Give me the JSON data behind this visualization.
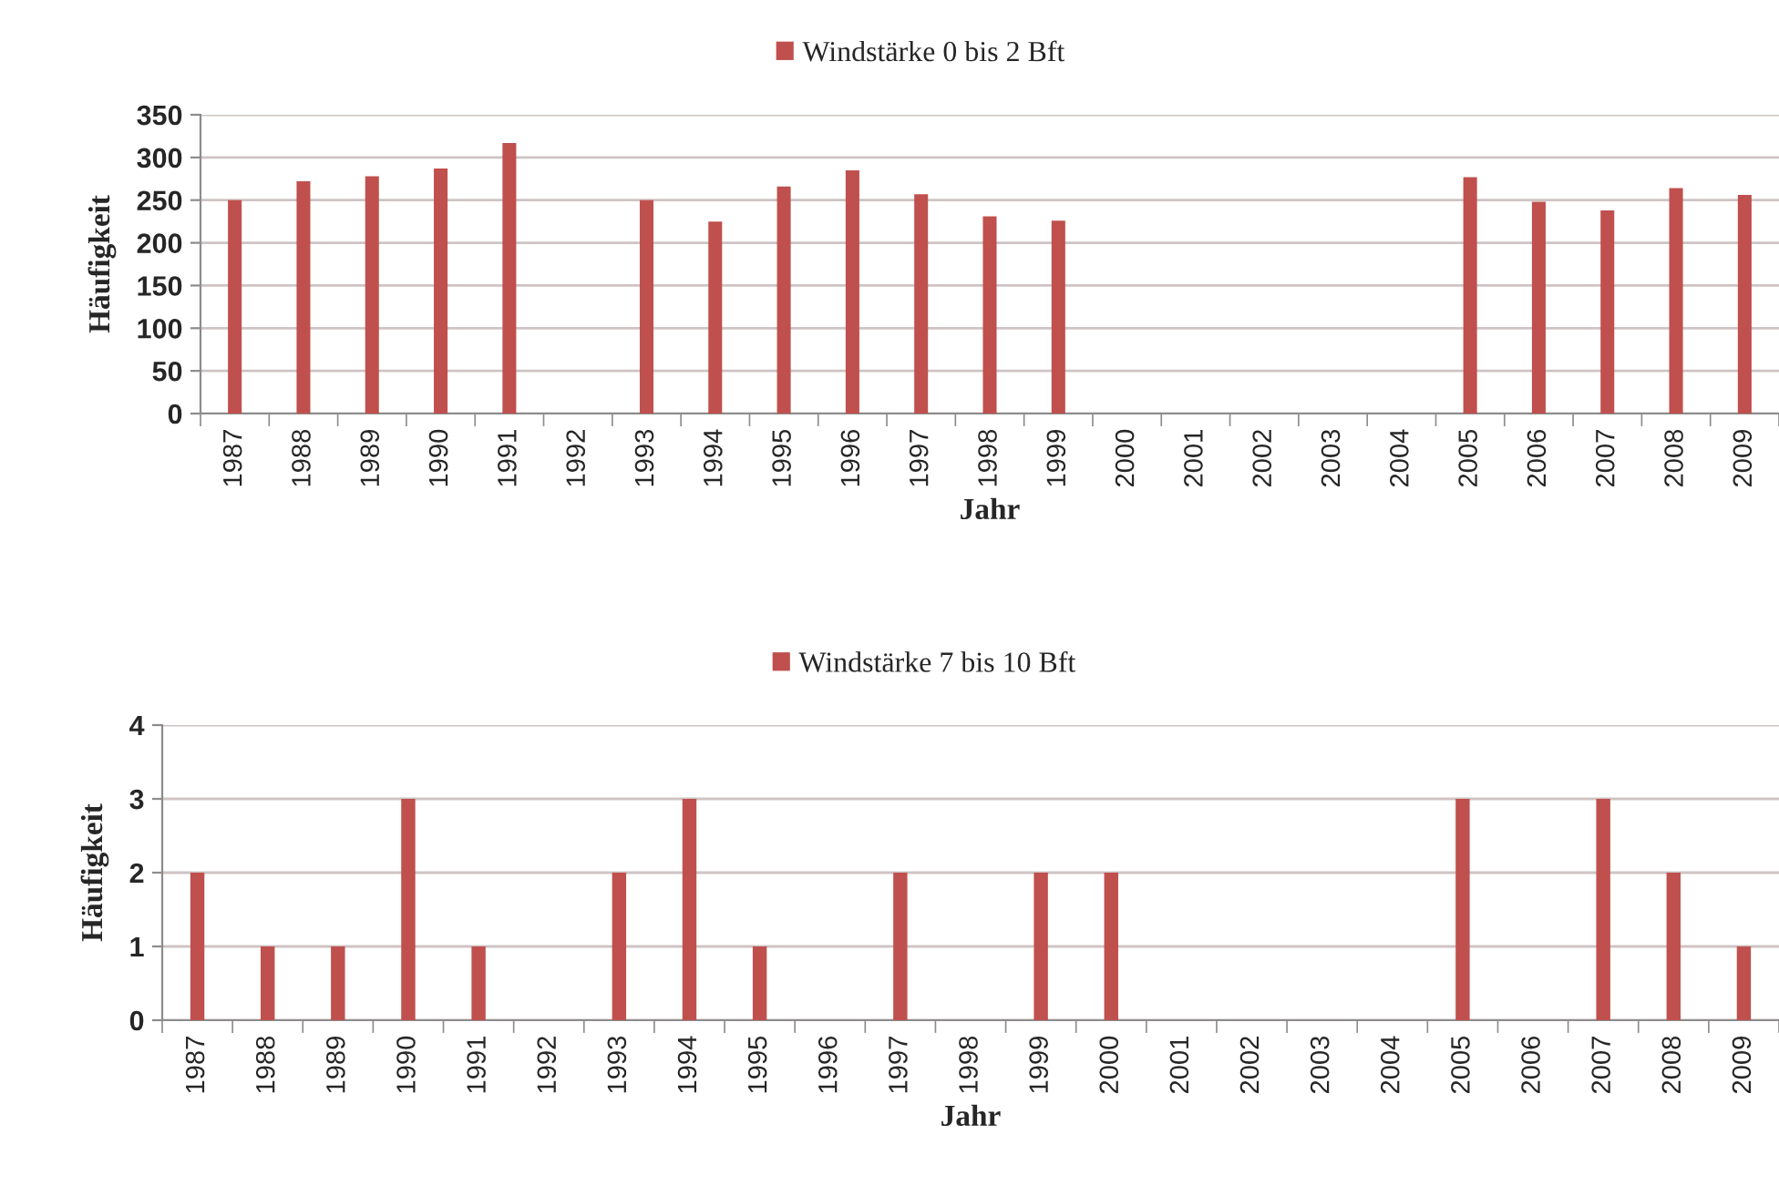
{
  "chart_data": [
    {
      "type": "bar",
      "categories": [
        "1987",
        "1988",
        "1989",
        "1990",
        "1991",
        "1992",
        "1993",
        "1994",
        "1995",
        "1996",
        "1997",
        "1998",
        "1999",
        "2000",
        "2001",
        "2002",
        "2003",
        "2004",
        "2005",
        "2006",
        "2007",
        "2008",
        "2009"
      ],
      "series": [
        {
          "name": "Windstärke 0 bis 2 Bft",
          "color": "#c0504d",
          "values": [
            250,
            272,
            278,
            287,
            317,
            null,
            250,
            225,
            266,
            285,
            257,
            231,
            226,
            null,
            null,
            null,
            null,
            null,
            277,
            248,
            238,
            264,
            256
          ]
        }
      ],
      "xlabel": "Jahr",
      "ylabel": "Häufigkeit",
      "ylim": [
        0,
        350
      ],
      "yticks": [
        0,
        50,
        100,
        150,
        200,
        250,
        300,
        350
      ],
      "grid": "y",
      "legend": "top"
    },
    {
      "type": "bar",
      "categories": [
        "1987",
        "1988",
        "1989",
        "1990",
        "1991",
        "1992",
        "1993",
        "1994",
        "1995",
        "1996",
        "1997",
        "1998",
        "1999",
        "2000",
        "2001",
        "2002",
        "2003",
        "2004",
        "2005",
        "2006",
        "2007",
        "2008",
        "2009"
      ],
      "series": [
        {
          "name": "Windstärke 7 bis 10 Bft",
          "color": "#c0504d",
          "values": [
            2,
            1,
            1,
            3,
            1,
            0,
            2,
            3,
            1,
            0,
            2,
            0,
            2,
            2,
            0,
            0,
            0,
            0,
            3,
            0,
            3,
            2,
            1
          ]
        }
      ],
      "xlabel": "Jahr",
      "ylabel": "Häufigkeit",
      "ylim": [
        0,
        4
      ],
      "yticks": [
        0,
        1,
        2,
        3,
        4
      ],
      "grid": "y",
      "legend": "top"
    }
  ]
}
